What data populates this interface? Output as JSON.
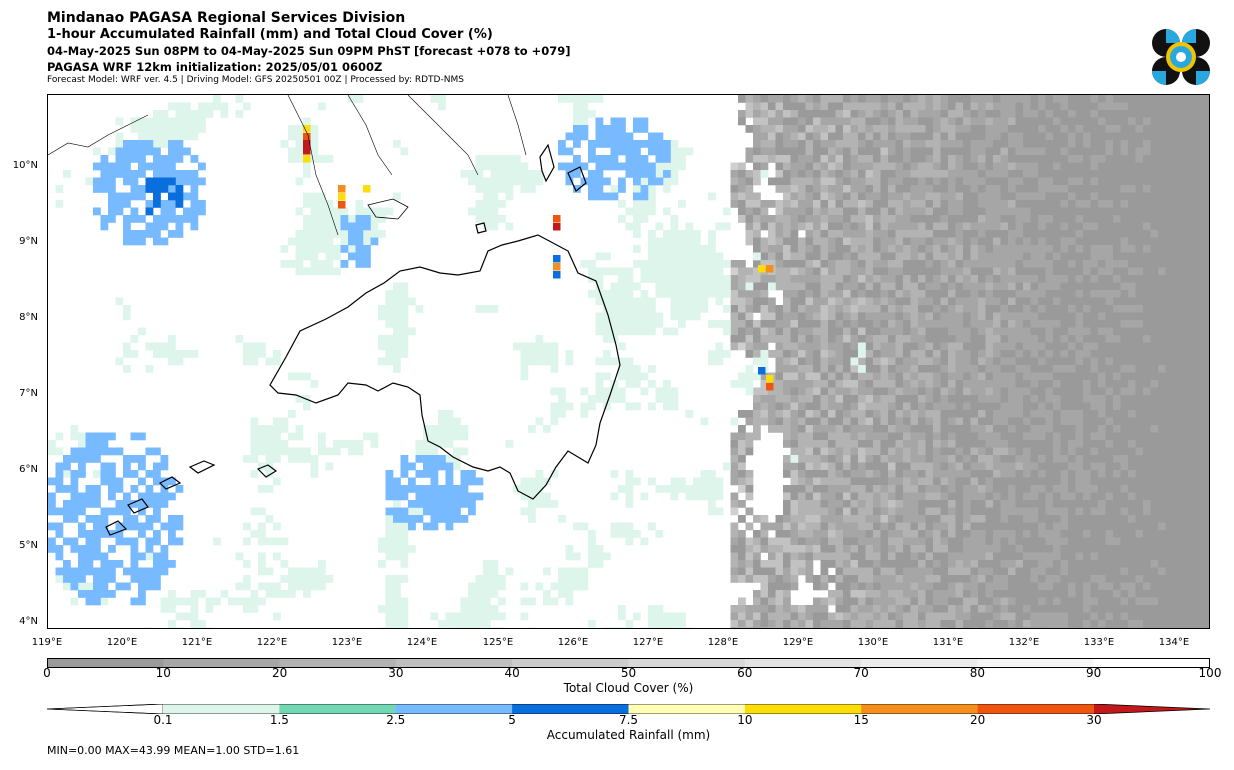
{
  "header": {
    "title": "Mindanao PAGASA Regional Services Division",
    "product": "1-hour Accumulated Rainfall (mm) and Total Cloud Cover (%)",
    "valid_time": "04-May-2025 Sun 08PM to 04-May-2025 Sun 09PM PhST [forecast +078 to +079]",
    "init": "PAGASA WRF 12km initialization: 2025/05/01 0600Z",
    "model_info": "Forecast Model: WRF ver. 4.5 | Driving Model: GFS 20250501 00Z | Processed by: RDTD-NMS"
  },
  "map": {
    "lat_labels": [
      "10°N",
      "9°N",
      "8°N",
      "7°N",
      "6°N",
      "5°N",
      "4°N"
    ],
    "lon_labels": [
      "119°E",
      "120°E",
      "121°E",
      "122°E",
      "123°E",
      "124°E",
      "125°E",
      "126°E",
      "127°E",
      "128°E",
      "129°E",
      "130°E",
      "131°E",
      "132°E",
      "133°E",
      "134°E"
    ],
    "lon_range": [
      119,
      134.5
    ],
    "lat_range": [
      3.9,
      11
    ]
  },
  "cloud_colorbar": {
    "label": "Total Cloud Cover (%)",
    "ticks": [
      "0",
      "10",
      "20",
      "30",
      "40",
      "50",
      "60",
      "70",
      "80",
      "90",
      "100"
    ],
    "colors": [
      "#9a9a9a",
      "#a6a6a6",
      "#b3b3b3",
      "#bfbfbf",
      "#cccccc",
      "#d8d8d8",
      "#e3e3e3",
      "#ececec",
      "#f5f5f5",
      "#ffffff"
    ]
  },
  "rain_colorbar": {
    "label": "Accumulated Rainfall (mm)",
    "ticks": [
      "0.1",
      "1.5",
      "2.5",
      "5",
      "7.5",
      "10",
      "15",
      "20",
      "30"
    ],
    "colors": [
      "#def5ec",
      "#74d7b3",
      "#78baff",
      "#0a6fdd",
      "#ffffb3",
      "#fadd0a",
      "#f48e1f",
      "#ee5511",
      "#c2181b"
    ]
  },
  "stats": "MIN=0.00   MAX=43.99   MEAN=1.00   STD=1.61"
}
